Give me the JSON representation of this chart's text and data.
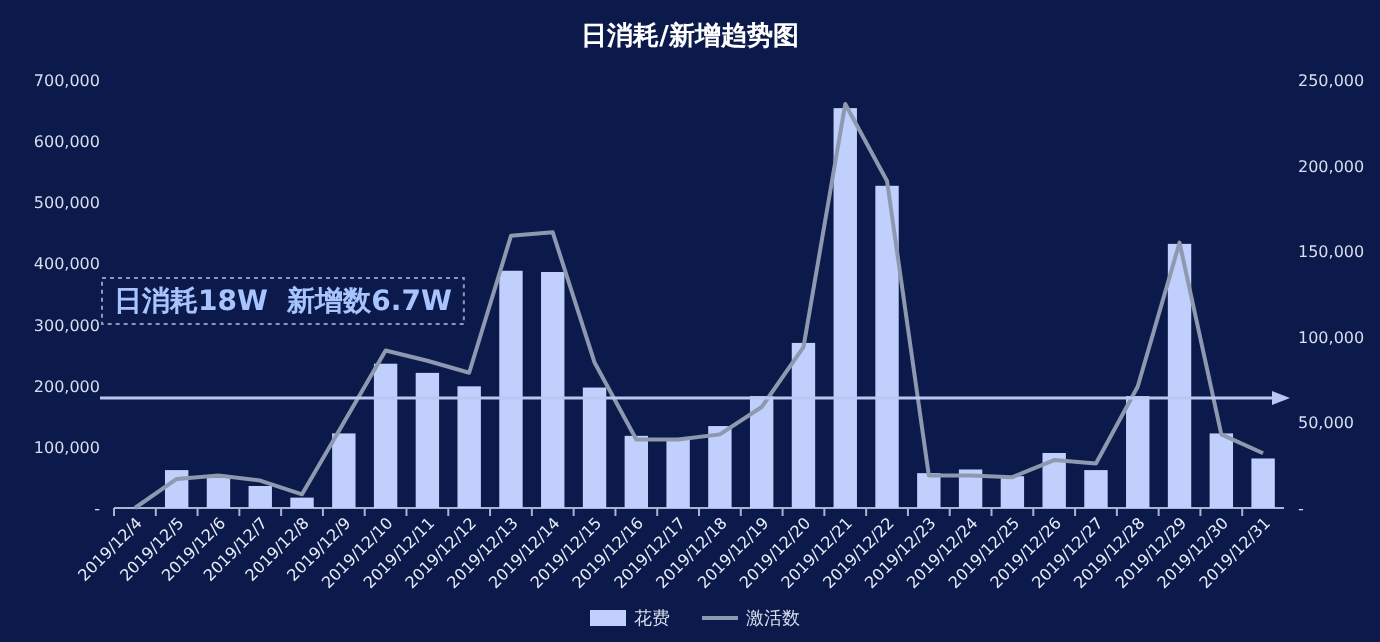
{
  "chart_data": {
    "type": "bar",
    "title": "日消耗/新增趋势图",
    "categories": [
      "2019/12/4",
      "2019/12/5",
      "2019/12/6",
      "2019/12/7",
      "2019/12/8",
      "2019/12/9",
      "2019/12/10",
      "2019/12/11",
      "2019/12/12",
      "2019/12/13",
      "2019/12/14",
      "2019/12/15",
      "2019/12/16",
      "2019/12/17",
      "2019/12/18",
      "2019/12/19",
      "2019/12/20",
      "2019/12/21",
      "2019/12/22",
      "2019/12/23",
      "2019/12/24",
      "2019/12/25",
      "2019/12/26",
      "2019/12/27",
      "2019/12/28",
      "2019/12/29",
      "2019/12/30",
      "2019/12/31"
    ],
    "series": [
      {
        "name": "花费",
        "color": "#c0cffc",
        "values": [
          0,
          62000,
          50000,
          36000,
          17000,
          122000,
          236000,
          221000,
          199000,
          388000,
          386000,
          197000,
          118000,
          112000,
          134000,
          183000,
          270000,
          654000,
          527000,
          57000,
          63000,
          52000,
          90000,
          62000,
          183000,
          432000,
          122000,
          81000
        ]
      },
      {
        "name": "激活数",
        "type": "line",
        "axis": "y2",
        "color": "#8e99b0",
        "values": [
          0,
          17000,
          19000,
          16000,
          8000,
          50000,
          92000,
          86000,
          79000,
          159000,
          161000,
          85000,
          40000,
          40000,
          43000,
          59000,
          94000,
          236000,
          191000,
          19000,
          19000,
          18000,
          28000,
          26000,
          71000,
          155000,
          43000,
          32000
        ]
      }
    ],
    "ylim": [
      0,
      700000
    ],
    "yticks": [
      {
        "value": 0,
        "label": "-"
      },
      {
        "value": 100000,
        "label": "100,000"
      },
      {
        "value": 200000,
        "label": "200,000"
      },
      {
        "value": 300000,
        "label": "300,000"
      },
      {
        "value": 400000,
        "label": "400,000"
      },
      {
        "value": 500000,
        "label": "500,000"
      },
      {
        "value": 600000,
        "label": "600,000"
      },
      {
        "value": 700000,
        "label": "700,000"
      }
    ],
    "y2lim": [
      0,
      250000
    ],
    "y2ticks": [
      {
        "value": 0,
        "label": "-"
      },
      {
        "value": 50000,
        "label": "50,000"
      },
      {
        "value": 100000,
        "label": "100,000"
      },
      {
        "value": 150000,
        "label": "150,000"
      },
      {
        "value": 200000,
        "label": "200,000"
      },
      {
        "value": 250000,
        "label": "250,000"
      }
    ],
    "ref_lines": [
      {
        "axis": "y",
        "value": 180000,
        "color": "#b8c8f0"
      }
    ],
    "annotations": [
      "日消耗18W  新增数6.7W"
    ],
    "legend": "bottom",
    "grid": false,
    "marker": "none",
    "line_style": "solid"
  }
}
